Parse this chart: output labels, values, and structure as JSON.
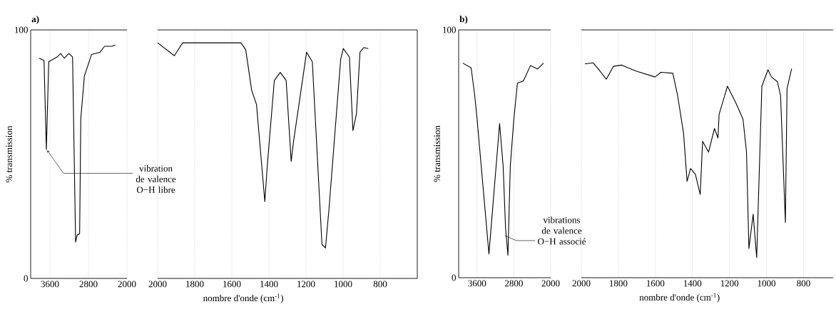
{
  "chart_data": [
    {
      "type": "line",
      "title": "a)",
      "ylabel": "% transmission",
      "color": "#000000",
      "grid": "x",
      "xlim": [
        4000,
        2000
      ],
      "xticks": [
        3600,
        2800,
        2000
      ],
      "ylim": [
        0,
        100
      ],
      "yticks": [
        0,
        100
      ],
      "x": [
        3822,
        3723,
        3674,
        3625,
        3452,
        3378,
        3304,
        3205,
        3130,
        3067,
        3033,
        2983,
        2959,
        2884,
        2736,
        2563,
        2464,
        2316,
        2242
      ],
      "values": [
        88.6,
        87.7,
        51.9,
        87.2,
        89.1,
        90.5,
        88.6,
        90.5,
        89.1,
        14.6,
        17.5,
        18.0,
        64.3,
        81.5,
        90.1,
        91.0,
        93.4,
        93.4,
        93.9
      ],
      "annotations": [
        {
          "text": "vibration de valence O−H libre",
          "x": 3674,
          "y": 52
        }
      ]
    },
    {
      "type": "line",
      "xlabel": "nombre d'onde (cm$^{-1}$)",
      "color": "#000000",
      "grid": "x",
      "xlim": [
        2000,
        600
      ],
      "xticks": [
        2000,
        1800,
        1600,
        1400,
        1200,
        1000,
        800
      ],
      "ylim": [
        0,
        100
      ],
      "tick_labels": "x",
      "x": [
        2000,
        1910,
        1865,
        1551,
        1525,
        1493,
        1467,
        1422,
        1409,
        1371,
        1339,
        1307,
        1280,
        1268,
        1197,
        1166,
        1114,
        1095,
        1076,
        1013,
        999,
        966,
        947,
        928,
        909,
        889,
        864
      ],
      "values": [
        94.8,
        89.6,
        94.8,
        94.8,
        92.0,
        75.7,
        70.0,
        30.9,
        45.2,
        79.6,
        82.9,
        79.6,
        47.1,
        54.7,
        91.0,
        87.2,
        13.7,
        12.2,
        28.0,
        88.2,
        92.5,
        89.1,
        59.5,
        66.2,
        91.0,
        92.9,
        92.5
      ]
    },
    {
      "type": "line",
      "title": "b)",
      "ylabel": "% transmission",
      "color": "#000000",
      "grid": "x",
      "xlim": [
        4000,
        2000
      ],
      "xticks": [
        3600,
        2800,
        2000
      ],
      "ylim": [
        0,
        100
      ],
      "yticks": [
        0,
        100
      ],
      "x": [
        3910,
        3729,
        3652,
        3600,
        3342,
        3110,
        3033,
        2981,
        2929,
        2878,
        2800,
        2723,
        2594,
        2439,
        2284,
        2155
      ],
      "values": [
        86.6,
        84.7,
        73.7,
        64.1,
        9.6,
        62.2,
        45.0,
        20.1,
        9.1,
        45.0,
        64.1,
        78.5,
        79.4,
        85.6,
        84.2,
        86.6
      ],
      "annotations": [
        {
          "text": "vibrations de valence O−H associé",
          "x": 3000,
          "y": 17
        }
      ]
    },
    {
      "type": "line",
      "xlabel": "nombre d'onde (cm$^{-1}$)",
      "color": "#000000",
      "grid": "x",
      "xlim": [
        2000,
        640
      ],
      "xticks": [
        2000,
        1800,
        1600,
        1400,
        1200,
        1000,
        800
      ],
      "ylim": [
        0,
        100
      ],
      "tick_labels": "x",
      "x": [
        1981,
        1936,
        1910,
        1865,
        1827,
        1782,
        1705,
        1602,
        1570,
        1506,
        1480,
        1448,
        1429,
        1410,
        1384,
        1358,
        1345,
        1313,
        1281,
        1262,
        1256,
        1211,
        1166,
        1127,
        1108,
        1095,
        1072,
        1053,
        1025,
        992,
        973,
        941,
        924,
        898,
        889,
        864
      ],
      "values": [
        86.3,
        86.7,
        84.4,
        80.1,
        85.3,
        85.8,
        83.4,
        81.0,
        82.9,
        82.5,
        73.5,
        58.3,
        38.9,
        44.1,
        41.7,
        33.6,
        55.0,
        50.7,
        60.2,
        56.4,
        65.9,
        77.3,
        70.6,
        64.0,
        50.7,
        11.8,
        25.6,
        8.1,
        77.3,
        83.9,
        81.0,
        79.1,
        73.5,
        22.3,
        76.3,
        84.4
      ]
    }
  ]
}
